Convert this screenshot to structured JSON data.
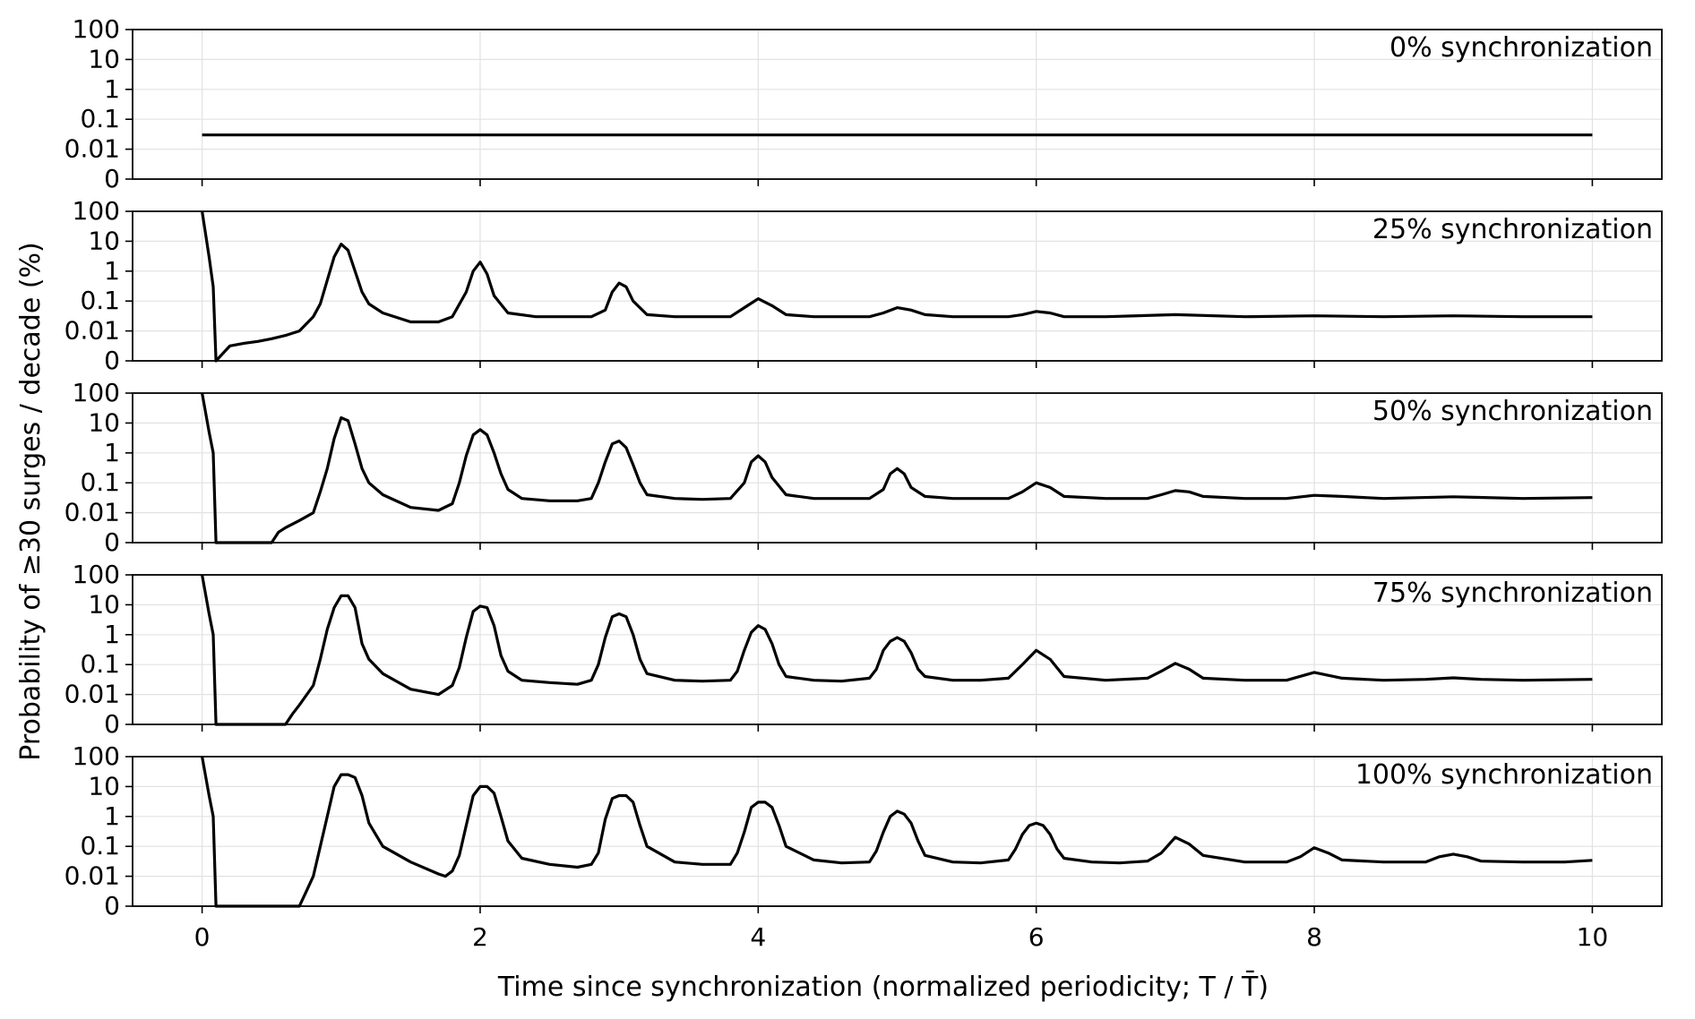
{
  "chart_data": {
    "type": "line",
    "layout": "5 vertically stacked panels sharing the x axis",
    "xlabel": "Time since synchronization (normalized periodicity; T / T̄)",
    "ylabel": "Probability of ≥30 surges / decade (%)",
    "xlim": [
      -0.5,
      10.5
    ],
    "x_ticks": [
      0,
      2,
      4,
      6,
      8,
      10
    ],
    "x_tick_labels": [
      "0",
      "2",
      "4",
      "6",
      "8",
      "10"
    ],
    "y_scale": "log-like, with 0 at bottom",
    "y_ticks": [
      0,
      0.01,
      0.1,
      1,
      10,
      100
    ],
    "y_tick_labels": [
      "0",
      "0.01",
      "0.1",
      "1",
      "10",
      "100"
    ],
    "grid": true,
    "line_color": "#000000",
    "panels": [
      {
        "label": "0% synchronization",
        "x": [
          0,
          1,
          2,
          3,
          4,
          5,
          6,
          7,
          8,
          9,
          10
        ],
        "y": [
          0.03,
          0.03,
          0.03,
          0.03,
          0.03,
          0.03,
          0.03,
          0.03,
          0.03,
          0.03,
          0.03
        ]
      },
      {
        "label": "25% synchronization",
        "x": [
          0,
          0.05,
          0.08,
          0.1,
          0.2,
          0.3,
          0.4,
          0.5,
          0.6,
          0.7,
          0.8,
          0.85,
          0.9,
          0.95,
          1.0,
          1.05,
          1.1,
          1.15,
          1.2,
          1.3,
          1.5,
          1.7,
          1.8,
          1.9,
          1.95,
          2.0,
          2.05,
          2.1,
          2.2,
          2.4,
          2.6,
          2.8,
          2.9,
          2.95,
          3.0,
          3.05,
          3.1,
          3.2,
          3.4,
          3.6,
          3.8,
          3.9,
          4.0,
          4.1,
          4.2,
          4.4,
          4.6,
          4.8,
          4.9,
          5.0,
          5.1,
          5.2,
          5.4,
          5.6,
          5.8,
          5.9,
          6.0,
          6.1,
          6.2,
          6.5,
          7.0,
          7.5,
          8.0,
          8.5,
          9.0,
          9.5,
          10.0
        ],
        "y": [
          100,
          3,
          0.3,
          0,
          0.001,
          0.0015,
          0.002,
          0.003,
          0.005,
          0.01,
          0.03,
          0.08,
          0.5,
          3,
          8,
          5,
          1,
          0.2,
          0.08,
          0.04,
          0.02,
          0.02,
          0.03,
          0.2,
          1,
          2,
          0.8,
          0.15,
          0.04,
          0.03,
          0.03,
          0.03,
          0.05,
          0.2,
          0.4,
          0.3,
          0.1,
          0.035,
          0.03,
          0.03,
          0.03,
          0.06,
          0.12,
          0.07,
          0.035,
          0.03,
          0.03,
          0.03,
          0.04,
          0.06,
          0.05,
          0.035,
          0.03,
          0.03,
          0.03,
          0.035,
          0.045,
          0.04,
          0.03,
          0.03,
          0.035,
          0.03,
          0.032,
          0.03,
          0.032,
          0.03,
          0.03
        ]
      },
      {
        "label": "50% synchronization",
        "x": [
          0,
          0.05,
          0.08,
          0.1,
          0.3,
          0.5,
          0.55,
          0.6,
          0.7,
          0.8,
          0.85,
          0.9,
          0.95,
          1.0,
          1.05,
          1.1,
          1.15,
          1.2,
          1.3,
          1.5,
          1.7,
          1.8,
          1.85,
          1.9,
          1.95,
          2.0,
          2.05,
          2.1,
          2.15,
          2.2,
          2.3,
          2.5,
          2.7,
          2.8,
          2.85,
          2.9,
          2.95,
          3.0,
          3.05,
          3.1,
          3.15,
          3.2,
          3.4,
          3.6,
          3.8,
          3.9,
          3.95,
          4.0,
          4.05,
          4.1,
          4.2,
          4.4,
          4.6,
          4.8,
          4.9,
          4.95,
          5.0,
          5.05,
          5.1,
          5.2,
          5.4,
          5.6,
          5.8,
          5.9,
          6.0,
          6.1,
          6.2,
          6.5,
          6.8,
          6.9,
          7.0,
          7.1,
          7.2,
          7.5,
          7.8,
          8.0,
          8.2,
          8.5,
          9.0,
          9.5,
          10.0
        ],
        "y": [
          100,
          5,
          1,
          0,
          0,
          0,
          0.0005,
          0.001,
          0.003,
          0.01,
          0.05,
          0.3,
          3,
          15,
          12,
          2,
          0.3,
          0.1,
          0.04,
          0.015,
          0.012,
          0.02,
          0.1,
          0.8,
          4,
          6,
          4,
          1,
          0.2,
          0.06,
          0.03,
          0.025,
          0.025,
          0.03,
          0.1,
          0.5,
          2,
          2.5,
          1.5,
          0.4,
          0.1,
          0.04,
          0.03,
          0.028,
          0.03,
          0.1,
          0.5,
          0.8,
          0.5,
          0.15,
          0.04,
          0.03,
          0.03,
          0.03,
          0.06,
          0.2,
          0.3,
          0.2,
          0.07,
          0.035,
          0.03,
          0.03,
          0.03,
          0.05,
          0.1,
          0.07,
          0.035,
          0.03,
          0.03,
          0.04,
          0.055,
          0.05,
          0.035,
          0.03,
          0.03,
          0.038,
          0.035,
          0.03,
          0.034,
          0.03,
          0.032
        ]
      },
      {
        "label": "75% synchronization",
        "x": [
          0,
          0.05,
          0.08,
          0.1,
          0.3,
          0.6,
          0.65,
          0.7,
          0.8,
          0.85,
          0.9,
          0.95,
          1.0,
          1.05,
          1.1,
          1.15,
          1.2,
          1.3,
          1.5,
          1.7,
          1.8,
          1.85,
          1.9,
          1.95,
          2.0,
          2.05,
          2.1,
          2.15,
          2.2,
          2.3,
          2.5,
          2.7,
          2.8,
          2.85,
          2.9,
          2.95,
          3.0,
          3.05,
          3.1,
          3.15,
          3.2,
          3.4,
          3.6,
          3.8,
          3.85,
          3.9,
          3.95,
          4.0,
          4.05,
          4.1,
          4.15,
          4.2,
          4.4,
          4.6,
          4.8,
          4.85,
          4.9,
          4.95,
          5.0,
          5.05,
          5.1,
          5.15,
          5.2,
          5.4,
          5.6,
          5.8,
          5.9,
          6.0,
          6.1,
          6.2,
          6.5,
          6.8,
          6.9,
          7.0,
          7.1,
          7.2,
          7.5,
          7.8,
          8.0,
          8.2,
          8.5,
          8.8,
          9.0,
          9.2,
          9.5,
          10.0
        ],
        "y": [
          100,
          5,
          1,
          0,
          0,
          0,
          0.0005,
          0.002,
          0.02,
          0.15,
          1.5,
          8,
          20,
          20,
          8,
          0.5,
          0.15,
          0.05,
          0.015,
          0.01,
          0.02,
          0.08,
          0.8,
          6,
          9,
          8,
          2,
          0.2,
          0.06,
          0.03,
          0.025,
          0.022,
          0.03,
          0.1,
          0.8,
          4,
          5,
          4,
          1,
          0.15,
          0.05,
          0.03,
          0.028,
          0.03,
          0.06,
          0.3,
          1.2,
          2,
          1.5,
          0.5,
          0.1,
          0.04,
          0.03,
          0.028,
          0.035,
          0.07,
          0.3,
          0.6,
          0.8,
          0.6,
          0.25,
          0.07,
          0.04,
          0.03,
          0.03,
          0.035,
          0.1,
          0.3,
          0.15,
          0.04,
          0.03,
          0.035,
          0.06,
          0.11,
          0.07,
          0.035,
          0.03,
          0.03,
          0.055,
          0.035,
          0.03,
          0.032,
          0.036,
          0.032,
          0.03,
          0.032
        ]
      },
      {
        "label": "100% synchronization",
        "x": [
          0,
          0.05,
          0.08,
          0.1,
          0.4,
          0.7,
          0.75,
          0.8,
          0.85,
          0.9,
          0.95,
          1.0,
          1.05,
          1.1,
          1.15,
          1.2,
          1.3,
          1.5,
          1.7,
          1.75,
          1.8,
          1.85,
          1.9,
          1.95,
          2.0,
          2.05,
          2.1,
          2.15,
          2.2,
          2.3,
          2.5,
          2.7,
          2.8,
          2.85,
          2.9,
          2.95,
          3.0,
          3.05,
          3.1,
          3.15,
          3.2,
          3.4,
          3.6,
          3.8,
          3.85,
          3.9,
          3.95,
          4.0,
          4.05,
          4.1,
          4.15,
          4.2,
          4.4,
          4.6,
          4.8,
          4.85,
          4.9,
          4.95,
          5.0,
          5.05,
          5.1,
          5.15,
          5.2,
          5.4,
          5.6,
          5.8,
          5.85,
          5.9,
          5.95,
          6.0,
          6.05,
          6.1,
          6.15,
          6.2,
          6.4,
          6.6,
          6.8,
          6.9,
          7.0,
          7.1,
          7.2,
          7.5,
          7.8,
          7.9,
          8.0,
          8.1,
          8.2,
          8.5,
          8.8,
          8.9,
          9.0,
          9.1,
          9.2,
          9.5,
          9.8,
          10.0
        ],
        "y": [
          100,
          5,
          1,
          0,
          0,
          0,
          0.001,
          0.01,
          0.1,
          1,
          10,
          25,
          25,
          20,
          5,
          0.6,
          0.1,
          0.03,
          0.012,
          0.01,
          0.015,
          0.05,
          0.5,
          5,
          10,
          10,
          6,
          1,
          0.15,
          0.04,
          0.025,
          0.02,
          0.025,
          0.06,
          0.8,
          4,
          5,
          5,
          3,
          0.5,
          0.1,
          0.03,
          0.025,
          0.025,
          0.06,
          0.3,
          2,
          3,
          3,
          2,
          0.5,
          0.1,
          0.035,
          0.028,
          0.03,
          0.07,
          0.3,
          1,
          1.5,
          1.2,
          0.6,
          0.15,
          0.05,
          0.03,
          0.028,
          0.035,
          0.08,
          0.25,
          0.5,
          0.6,
          0.5,
          0.25,
          0.08,
          0.04,
          0.03,
          0.028,
          0.032,
          0.06,
          0.2,
          0.12,
          0.05,
          0.03,
          0.03,
          0.045,
          0.09,
          0.06,
          0.035,
          0.03,
          0.03,
          0.045,
          0.055,
          0.045,
          0.032,
          0.03,
          0.03,
          0.034
        ]
      }
    ]
  }
}
